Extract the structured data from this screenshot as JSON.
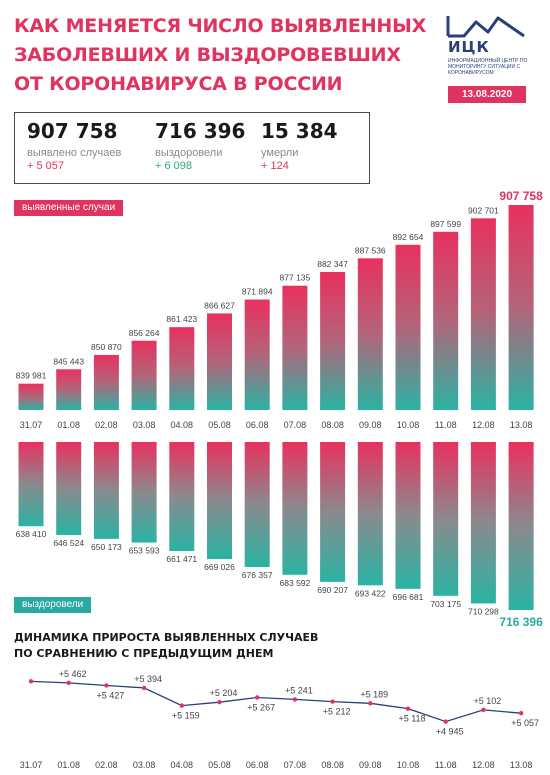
{
  "header": {
    "title_lines": [
      "КАК МЕНЯЕТСЯ ЧИСЛО ВЫЯВЛЕННЫХ",
      "ЗАБОЛЕВШИХ И ВЫЗДОРОВЕВШИХ",
      "ОТ КОРОНАВИРУСА В РОССИИ"
    ],
    "logo_abbr": "ИЦК",
    "logo_subtitle": "ИНФОРМАЦИОННЫЙ ЦЕНТР ПО МОНИТОРИНГУ СИТУАЦИИ С КОРОНАВИРУСОМ",
    "date": "13.08.2020"
  },
  "stats": [
    {
      "value": "907 758",
      "label": "выявлено случаев",
      "delta": "+ 5 057"
    },
    {
      "value": "716 396",
      "label": "выздоровели",
      "delta": "+ 6 098"
    },
    {
      "value": "15 384",
      "label": "умерли",
      "delta": "+ 124"
    }
  ],
  "colors": {
    "accent": "#e0335f",
    "teal": "#2aa9a0",
    "line": "#2a3f7a"
  },
  "cases_tag": "выявленные случаи",
  "recovered_tag": "выздоровели",
  "dynamics_title_lines": [
    "ДИНАМИКА ПРИРОСТА ВЫЯВЛЕННЫХ СЛУЧАЕВ",
    "ПО СРАВНЕНИЮ С ПРЕДЫДУЩИМ ДНЕМ"
  ],
  "chart_data": [
    {
      "type": "bar",
      "series_name": "выявленные случаи",
      "categories": [
        "31.07",
        "01.08",
        "02.08",
        "03.08",
        "04.08",
        "05.08",
        "06.08",
        "07.08",
        "08.08",
        "09.08",
        "10.08",
        "11.08",
        "12.08",
        "13.08"
      ],
      "values": [
        839981,
        845443,
        850870,
        856264,
        861423,
        866627,
        871894,
        877135,
        882347,
        887536,
        892654,
        897599,
        902701,
        907758
      ],
      "labels": [
        "839 981",
        "845 443",
        "850 870",
        "856 264",
        "861 423",
        "866 627",
        "871 894",
        "877 135",
        "882 347",
        "887 536",
        "892 654",
        "897 599",
        "902 701",
        "907 758"
      ]
    },
    {
      "type": "bar",
      "series_name": "выздоровели",
      "categories": [
        "31.07",
        "01.08",
        "02.08",
        "03.08",
        "04.08",
        "05.08",
        "06.08",
        "07.08",
        "08.08",
        "09.08",
        "10.08",
        "11.08",
        "12.08",
        "13.08"
      ],
      "values": [
        638410,
        646524,
        650173,
        653593,
        661471,
        669026,
        676357,
        683592,
        690207,
        693422,
        696681,
        703175,
        710298,
        716396
      ],
      "labels": [
        "638 410",
        "646 524",
        "650 173",
        "653 593",
        "661 471",
        "669 026",
        "676 357",
        "683 592",
        "690 207",
        "693 422",
        "696 681",
        "703 175",
        "710 298",
        "716 396"
      ]
    },
    {
      "type": "line",
      "title": "ДИНАМИКА ПРИРОСТА ВЫЯВЛЕННЫХ СЛУЧАЕВ ПО СРАВНЕНИЮ С ПРЕДЫДУЩИМ ДНЕМ",
      "categories": [
        "31.07",
        "01.08",
        "02.08",
        "03.08",
        "04.08",
        "05.08",
        "06.08",
        "07.08",
        "08.08",
        "09.08",
        "10.08",
        "11.08",
        "12.08",
        "13.08"
      ],
      "values": [
        5482,
        5462,
        5427,
        5394,
        5159,
        5204,
        5267,
        5241,
        5212,
        5189,
        5118,
        4945,
        5102,
        5057
      ],
      "labels": [
        "",
        "+5 462",
        "+5 427",
        "+5 394",
        "+5 159",
        "+5 204",
        "+5 267",
        "+5 241",
        "+5 212",
        "+5 189",
        "+5 118",
        "+4 945",
        "+5 102",
        "+5 057"
      ]
    }
  ]
}
